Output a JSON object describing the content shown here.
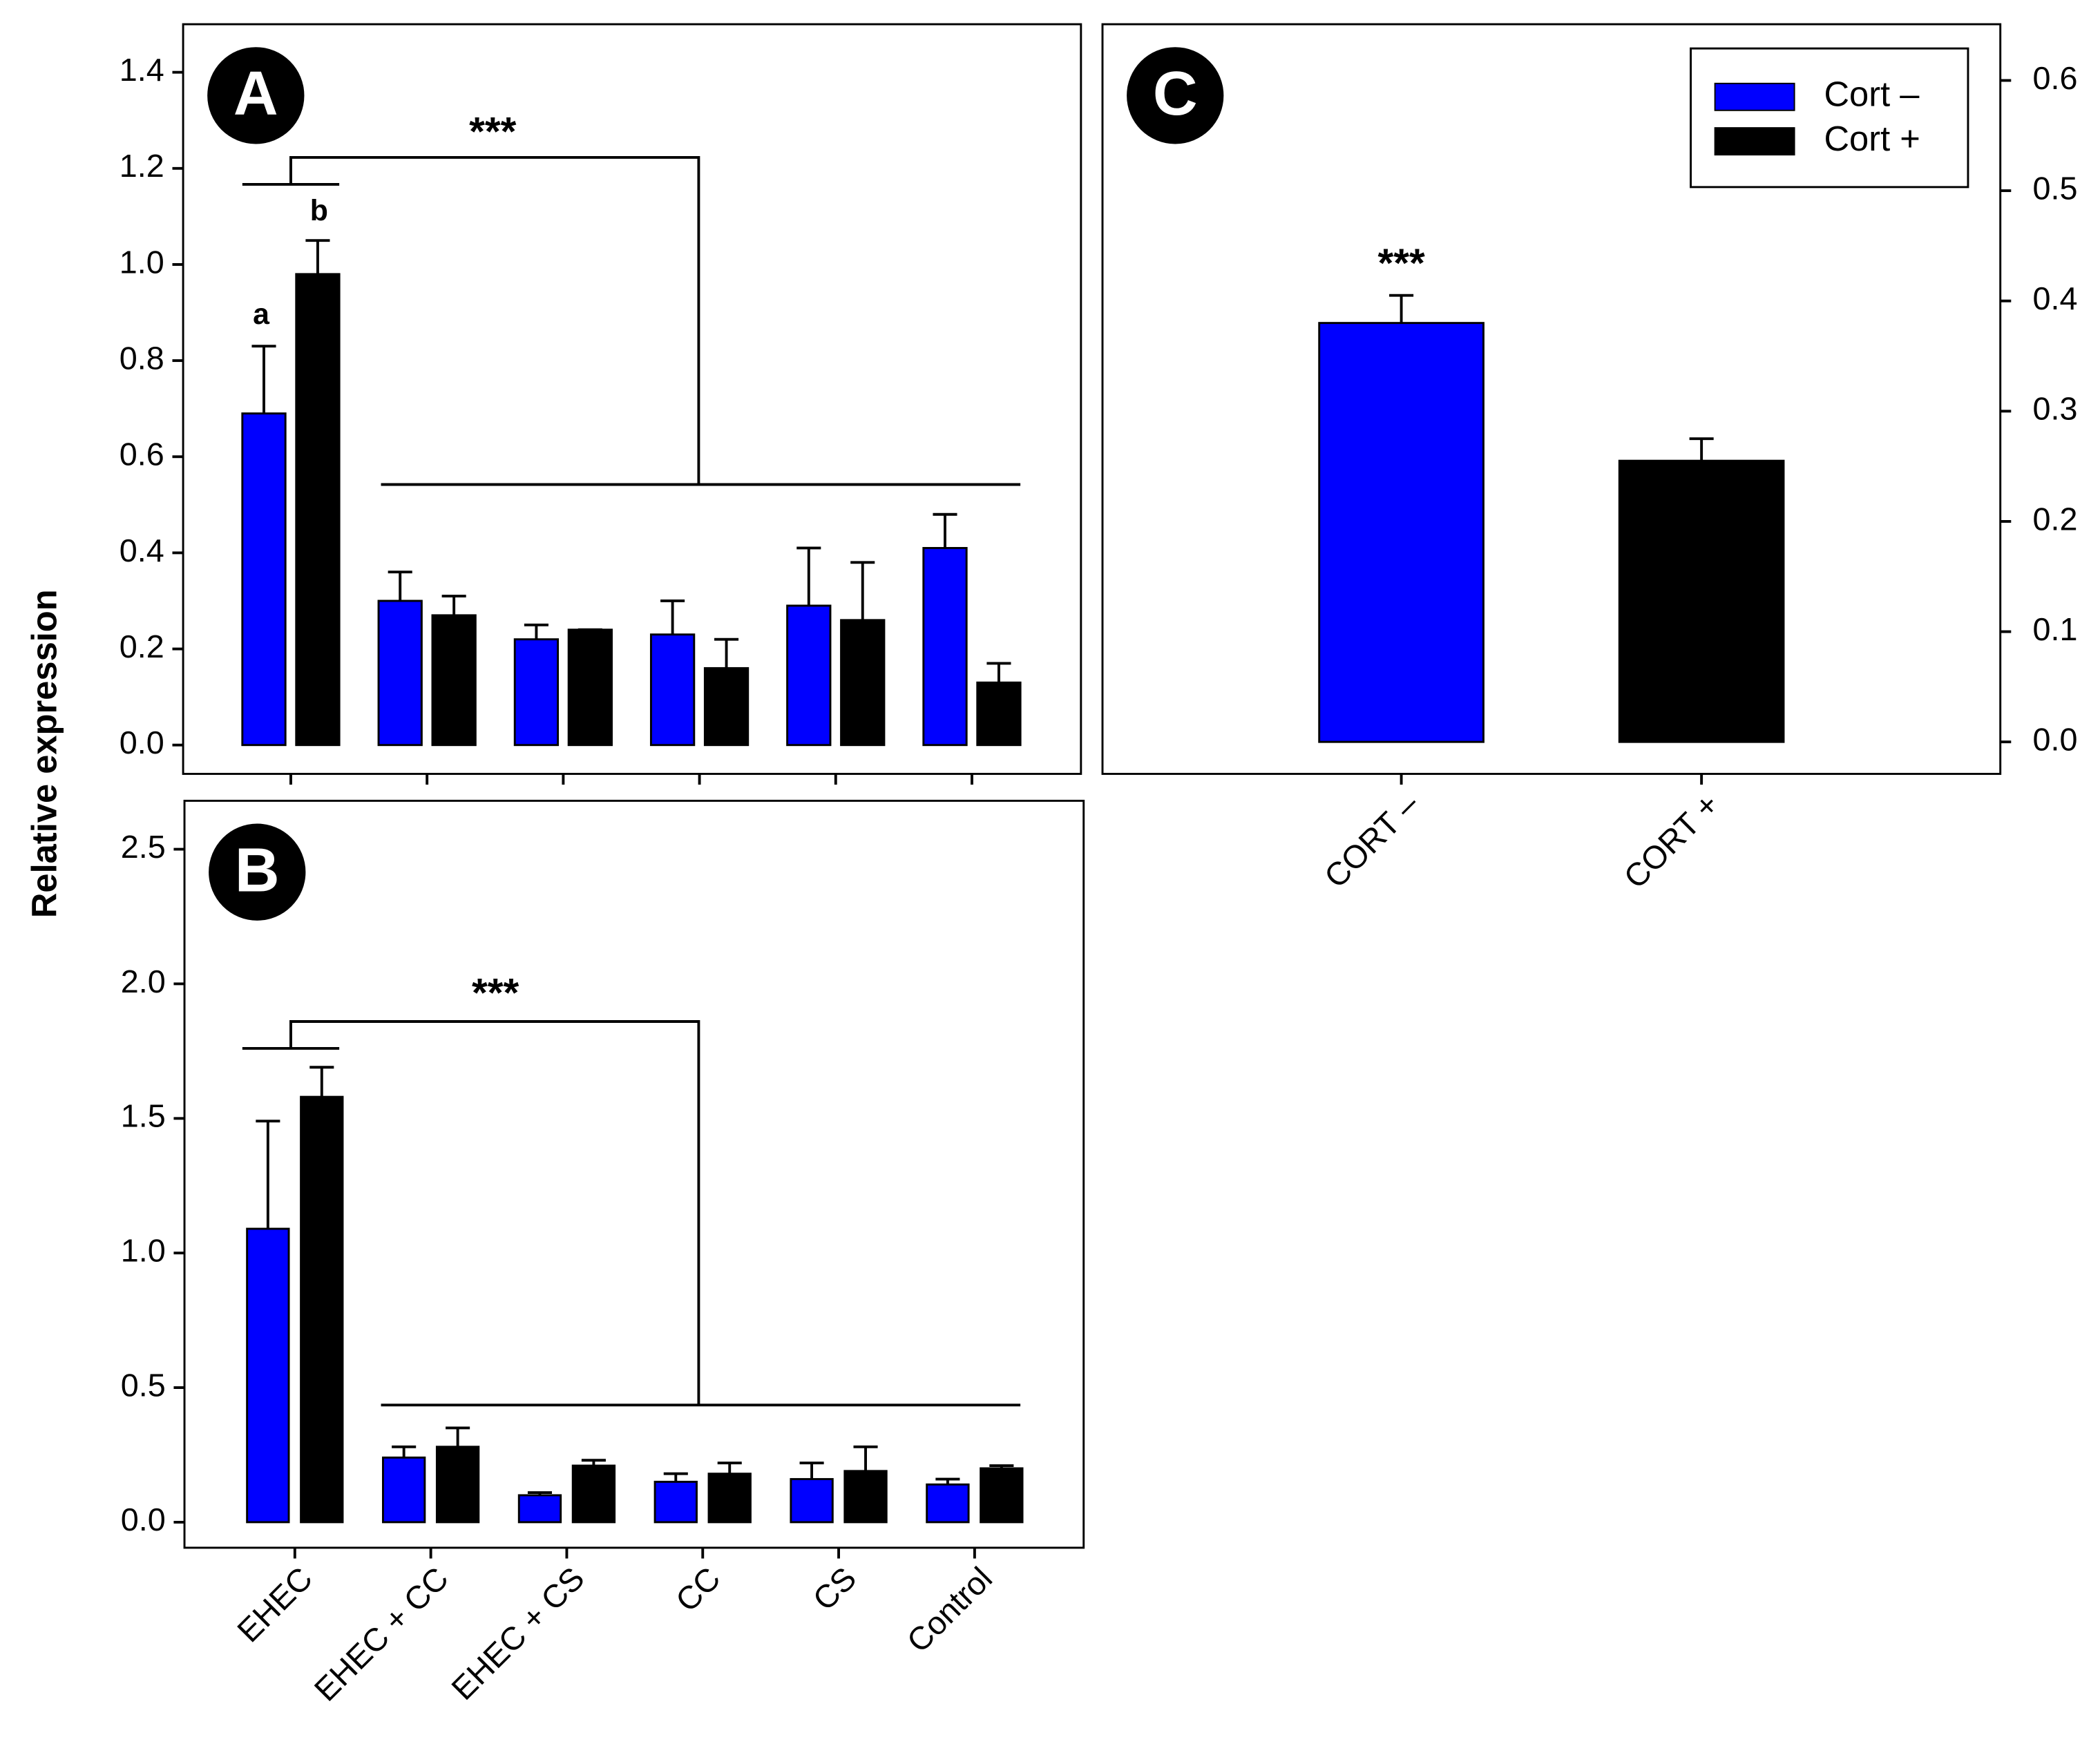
{
  "chart_data": [
    {
      "type": "bar",
      "panel": "A",
      "ylabel": "Relative expression",
      "categories": [
        "EHEC",
        "EHEC + CC",
        "EHEC + CS",
        "CC",
        "CS",
        "Control"
      ],
      "series": [
        {
          "name": "Cort –",
          "color": "#0000ff",
          "values": [
            0.69,
            0.3,
            0.22,
            0.23,
            0.29,
            0.41
          ],
          "errors": [
            0.14,
            0.06,
            0.03,
            0.07,
            0.12,
            0.07
          ]
        },
        {
          "name": "Cort +",
          "color": "#000000",
          "values": [
            0.98,
            0.27,
            0.24,
            0.16,
            0.26,
            0.13
          ],
          "errors": [
            0.07,
            0.04,
            0,
            0.06,
            0.12,
            0.04
          ]
        }
      ],
      "ylim": [
        -0.06,
        1.5
      ],
      "yticks": [
        {
          "value": 0,
          "label": "0.0"
        },
        0.2,
        0.4,
        0.6,
        0.8,
        {
          "value": 1,
          "label": "1.0"
        },
        1.2,
        1.4
      ],
      "annotations": [
        "***",
        "a",
        "b"
      ]
    },
    {
      "type": "bar",
      "panel": "B",
      "categories": [
        "EHEC",
        "EHEC + CC",
        "EHEC + CS",
        "CC",
        "CS",
        "Control"
      ],
      "series": [
        {
          "name": "Cort –",
          "color": "#0000ff",
          "values": [
            1.09,
            0.24,
            0.1,
            0.15,
            0.16,
            0.14
          ],
          "errors": [
            0.4,
            0.04,
            0.01,
            0.03,
            0.06,
            0.02
          ]
        },
        {
          "name": "Cort +",
          "color": "#000000",
          "values": [
            1.58,
            0.28,
            0.21,
            0.18,
            0.19,
            0.2
          ],
          "errors": [
            0.11,
            0.07,
            0.02,
            0.04,
            0.09,
            0.01
          ]
        }
      ],
      "ylim": [
        -0.095,
        2.68
      ],
      "yticks": [
        {
          "value": 0,
          "label": "0.0"
        },
        0.5,
        {
          "value": 1,
          "label": "1.0"
        },
        1.5,
        {
          "value": 2,
          "label": "2.0"
        },
        2.5
      ],
      "annotations": [
        "***"
      ]
    },
    {
      "type": "bar",
      "panel": "C",
      "categories": [
        "CORT –",
        "CORT +"
      ],
      "series": [
        {
          "name": "Cort –",
          "color": "#0000ff",
          "values": [
            0.38,
            null
          ],
          "errors": [
            0.025,
            null
          ]
        },
        {
          "name": "Cort +",
          "color": "#000000",
          "values": [
            null,
            0.255
          ],
          "errors": [
            null,
            0.02
          ]
        }
      ],
      "ylim": [
        -0.029,
        0.651
      ],
      "yticks": [
        {
          "value": 0,
          "label": "0.0"
        },
        0.1,
        0.2,
        0.3,
        0.4,
        0.5,
        0.6
      ],
      "legend": "upper right",
      "annotations": [
        "***"
      ]
    }
  ]
}
